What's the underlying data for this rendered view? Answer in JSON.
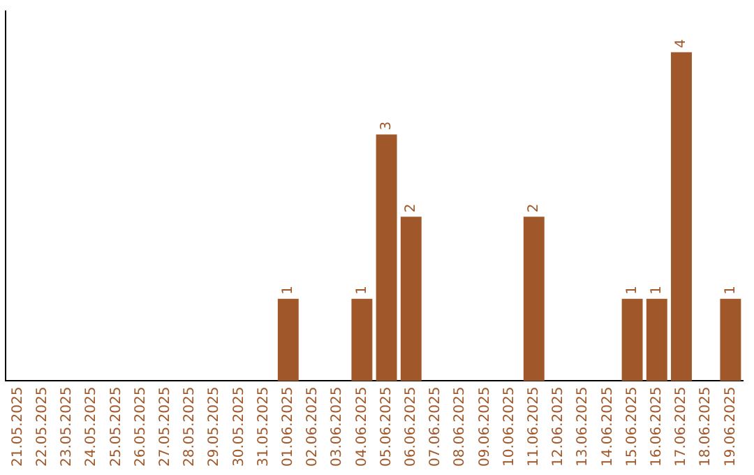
{
  "chart_data": {
    "type": "bar",
    "categories": [
      "21.05.2025",
      "22.05.2025",
      "23.05.2025",
      "24.05.2025",
      "25.05.2025",
      "26.05.2025",
      "27.05.2025",
      "28.05.2025",
      "29.05.2025",
      "30.05.2025",
      "31.05.2025",
      "01.06.2025",
      "02.06.2025",
      "03.06.2025",
      "04.06.2025",
      "05.06.2025",
      "06.06.2025",
      "07.06.2025",
      "08.06.2025",
      "09.06.2025",
      "10.06.2025",
      "11.06.2025",
      "12.06.2025",
      "13.06.2025",
      "14.06.2025",
      "15.06.2025",
      "16.06.2025",
      "17.06.2025",
      "18.06.2025",
      "19.06.2025"
    ],
    "values": [
      0,
      0,
      0,
      0,
      0,
      0,
      0,
      0,
      0,
      0,
      0,
      1,
      0,
      0,
      1,
      3,
      2,
      0,
      0,
      0,
      0,
      2,
      0,
      0,
      0,
      1,
      1,
      4,
      0,
      1
    ],
    "value_labels": [
      null,
      null,
      null,
      null,
      null,
      null,
      null,
      null,
      null,
      null,
      null,
      "1",
      null,
      null,
      "1",
      "3",
      "2",
      null,
      null,
      null,
      null,
      "2",
      null,
      null,
      null,
      "1",
      "1",
      "4",
      null,
      "1"
    ],
    "color": "#a0582b",
    "tick_labels": "x",
    "grid": false
  }
}
